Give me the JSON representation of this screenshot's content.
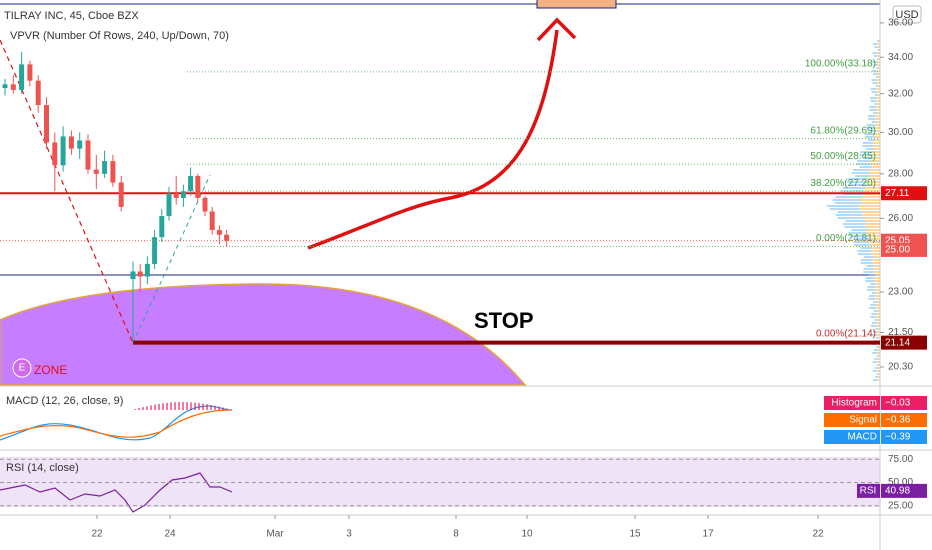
{
  "chart_data": {
    "type": "candlestick",
    "title": "TILRAY INC, 45, Cboe BZX",
    "subtitle": "VPVR (Number Of Rows, 240, Up/Down, 70)",
    "currency": "USD",
    "log_scale": true,
    "ylim": [
      19.7,
      37.4
    ],
    "yticks": [
      {
        "value": 36,
        "label": "36.00"
      },
      {
        "value": 34,
        "label": "34.00"
      },
      {
        "value": 32,
        "label": "32.00"
      },
      {
        "value": 30,
        "label": "30.00"
      },
      {
        "value": 28,
        "label": "28.00"
      },
      {
        "value": 26,
        "label": "26.00"
      },
      {
        "value": 23,
        "label": "23.00"
      },
      {
        "value": 21.5,
        "label": "21.50"
      },
      {
        "value": 20.3,
        "label": "20.30"
      }
    ],
    "categories": [
      "22",
      "24",
      "Mar",
      "3",
      "8",
      "10",
      "15",
      "17",
      "22"
    ],
    "up_color": "#26a69a",
    "down_color": "#ef5350",
    "open": [
      32.3,
      32.5,
      32.2,
      33.6,
      32.7,
      31.4,
      29.5,
      28.4,
      29.8,
      29.2,
      29.6,
      28.2,
      28.0,
      28.6,
      27.6,
      23.5,
      23.8,
      23.6,
      24.1,
      25.2,
      26.1,
      27.1,
      26.9,
      27.2,
      27.9,
      26.9,
      26.3,
      25.5,
      25.3
    ],
    "high": [
      32.8,
      33.0,
      34.3,
      33.8,
      33.0,
      31.8,
      30.0,
      30.3,
      30.1,
      30.0,
      29.9,
      28.9,
      29.1,
      28.9,
      27.9,
      24.2,
      24.1,
      24.4,
      25.5,
      26.4,
      27.4,
      27.9,
      27.5,
      28.3,
      28.0,
      27.0,
      26.5,
      25.7,
      25.5
    ],
    "low": [
      31.9,
      32.0,
      32.0,
      32.4,
      31.0,
      29.2,
      27.2,
      28.1,
      28.9,
      28.7,
      28.0,
      27.3,
      27.8,
      27.4,
      26.3,
      21.14,
      23.0,
      23.3,
      23.9,
      25.0,
      25.9,
      26.6,
      26.5,
      27.0,
      26.7,
      26.1,
      25.3,
      24.9,
      24.8
    ],
    "close": [
      32.5,
      32.2,
      33.6,
      32.7,
      31.4,
      29.5,
      28.4,
      29.8,
      29.2,
      29.6,
      28.2,
      28.0,
      28.6,
      27.6,
      26.5,
      23.8,
      23.6,
      24.1,
      25.2,
      26.1,
      27.1,
      26.9,
      27.2,
      27.9,
      26.9,
      26.3,
      25.5,
      25.3,
      25.05
    ],
    "fib_levels": [
      {
        "value": 33.18,
        "label": "100.00%(33.18)"
      },
      {
        "value": 29.69,
        "label": "61.80%(29.69)"
      },
      {
        "value": 28.45,
        "label": "50.00%(28.45)"
      },
      {
        "value": 27.2,
        "label": "38.20%(27.20)"
      },
      {
        "value": 24.81,
        "label": "0.00%(24.81)"
      }
    ],
    "stop_level": {
      "value": 21.14,
      "label": "0.00%(21.14)"
    },
    "price_lines": [
      {
        "value": 27.11,
        "label": "27.11",
        "color": "#e01010"
      },
      {
        "value": 25.05,
        "label": "25.05",
        "color": "#ef5350"
      },
      {
        "value": 25.0,
        "label": "25.00",
        "color": "#ef5350"
      },
      {
        "value": 21.14,
        "label": "21.14",
        "color": "#8b0000"
      }
    ],
    "annotations": {
      "stop": "STOP",
      "zone": "ZONE",
      "badge": "E"
    },
    "macd": {
      "title": "MACD (12, 26, close, 9)",
      "items": [
        {
          "name": "Histogram",
          "value": -0.03,
          "label": "−0.03",
          "color": "#e91e63"
        },
        {
          "name": "Signal",
          "value": -0.36,
          "label": "−0.36",
          "color": "#ff6d00"
        },
        {
          "name": "MACD",
          "value": -0.39,
          "label": "−0.39",
          "color": "#2196f3"
        }
      ]
    },
    "rsi": {
      "title": "RSI (14, close)",
      "name": "RSI",
      "value": 40.98,
      "label": "40.98",
      "color": "#7b1fa2",
      "ylim": [
        15,
        85
      ],
      "yticks": [
        {
          "value": 75,
          "label": "75.00"
        },
        {
          "value": 50,
          "label": "50.00"
        },
        {
          "value": 25,
          "label": "25.00"
        }
      ]
    }
  }
}
